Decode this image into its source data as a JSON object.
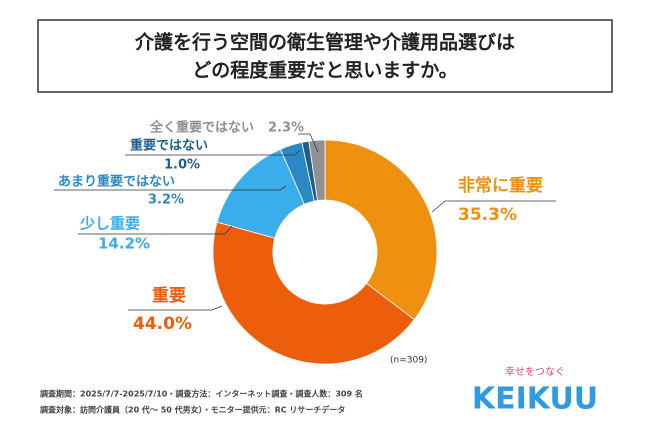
{
  "chart_data": {
    "type": "donut",
    "title": [
      "介護を行う空間の衛生管理や介護用品選びは",
      "どの程度重要だと思いますか。"
    ],
    "categories": [
      "非常に重要",
      "重要",
      "少し重要",
      "あまり重要ではない",
      "重要ではない",
      "全く重要ではない"
    ],
    "values": [
      35.3,
      44.0,
      14.2,
      3.2,
      1.0,
      2.3
    ],
    "value_labels": [
      "35.3%",
      "44.0%",
      "14.2%",
      "3.2%",
      "1.0%",
      "2.3%"
    ],
    "colors": [
      "#f0900f",
      "#ec5e0c",
      "#3aaeea",
      "#2a88c4",
      "#1e5f8c",
      "#8f9093"
    ],
    "sample_note": "(n=309)",
    "footnotes": [
      "調査期間：2025/7/7-2025/7/10・調査方法：インターネット調査・調査人数：309 名",
      "調査対象：訪問介護員（20 代～ 50 代男女）・モニター提供元：RC リサーチデータ"
    ],
    "logo_tagline": "幸せをつなぐ",
    "logo": "KEIKUU"
  }
}
